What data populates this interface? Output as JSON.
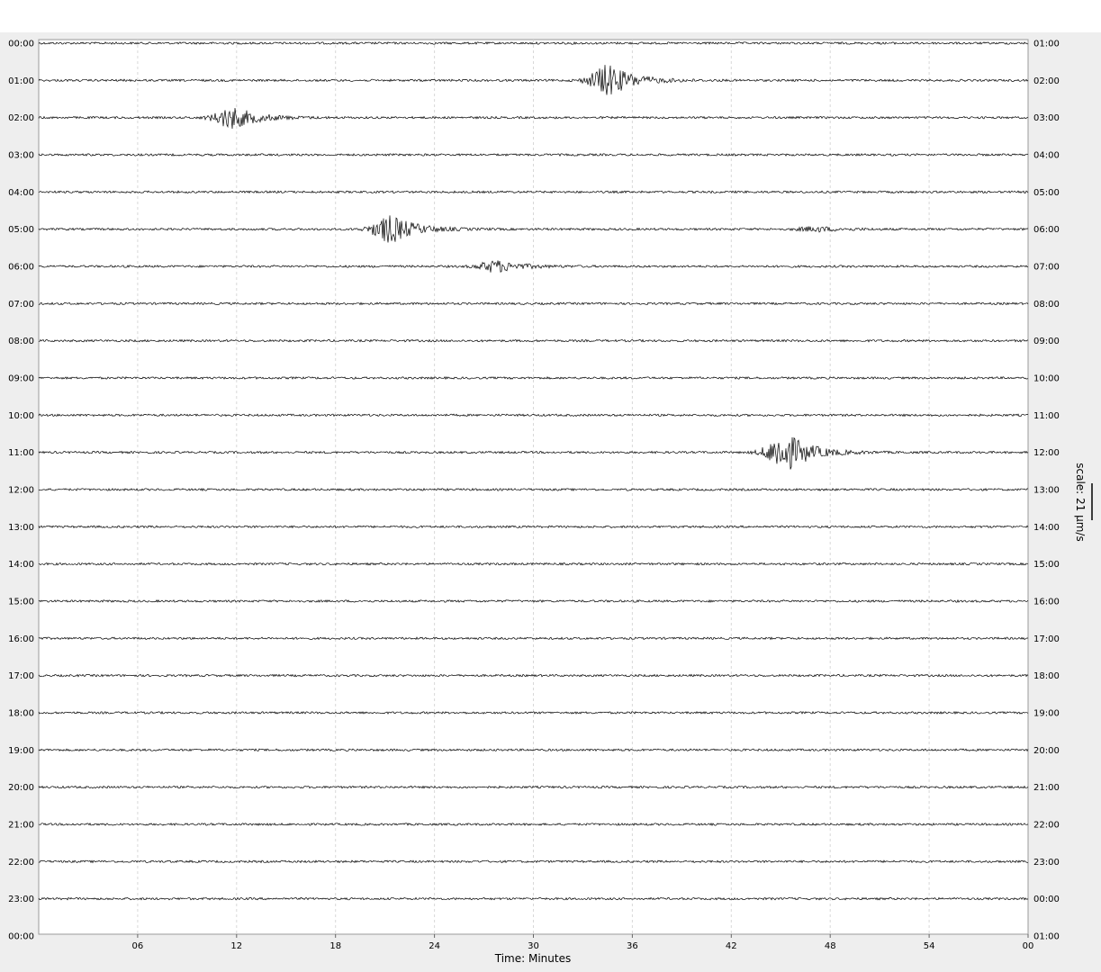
{
  "chart_data": {
    "type": "line",
    "title": "",
    "xlabel": "Time: Minutes",
    "ylabel": "",
    "xlim": [
      0,
      60
    ],
    "x_ticks": [
      "06",
      "12",
      "18",
      "24",
      "30",
      "36",
      "42",
      "48",
      "54",
      "00"
    ],
    "left_row_labels": [
      "00:00",
      "01:00",
      "02:00",
      "03:00",
      "04:00",
      "05:00",
      "06:00",
      "07:00",
      "08:00",
      "09:00",
      "10:00",
      "11:00",
      "12:00",
      "13:00",
      "14:00",
      "15:00",
      "16:00",
      "17:00",
      "18:00",
      "19:00",
      "20:00",
      "21:00",
      "22:00",
      "23:00",
      "00:00"
    ],
    "right_row_labels": [
      "01:00",
      "02:00",
      "03:00",
      "04:00",
      "05:00",
      "06:00",
      "07:00",
      "08:00",
      "09:00",
      "10:00",
      "11:00",
      "12:00",
      "13:00",
      "14:00",
      "15:00",
      "16:00",
      "17:00",
      "18:00",
      "19:00",
      "20:00",
      "21:00",
      "22:00",
      "23:00",
      "00:00",
      "01:00"
    ],
    "grid": true,
    "scale_label": "scale: 21 μm/s",
    "trace_color": "#000000",
    "events": [
      {
        "row": 1,
        "minute": 34.6,
        "amplitude": 0.8
      },
      {
        "row": 2,
        "minute": 11.8,
        "amplitude": 0.55
      },
      {
        "row": 5,
        "minute": 21.4,
        "amplitude": 0.7
      },
      {
        "row": 5,
        "minute": 47.2,
        "amplitude": 0.12
      },
      {
        "row": 6,
        "minute": 27.8,
        "amplitude": 0.3
      },
      {
        "row": 11,
        "minute": 45.3,
        "amplitude": 1.0
      }
    ]
  }
}
